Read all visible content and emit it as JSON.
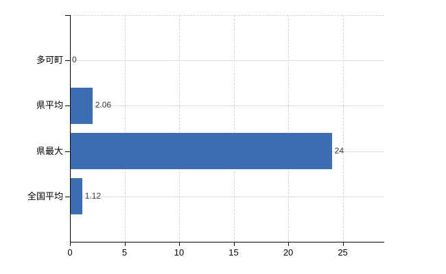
{
  "chart_data": {
    "type": "bar",
    "orientation": "horizontal",
    "title": "",
    "xlabel": "",
    "ylabel": "",
    "categories": [
      "多可町",
      "県平均",
      "県最大",
      "全国平均"
    ],
    "values": [
      0,
      2.06,
      24,
      1.12
    ],
    "value_labels": [
      "0",
      "2.06",
      "24",
      "1.12"
    ],
    "xticks": [
      0,
      5,
      10,
      15,
      20,
      25
    ],
    "xtick_labels": [
      "0",
      "5",
      "10",
      "15",
      "20",
      "25"
    ],
    "xlim": [
      0,
      28.8
    ],
    "grid": "on",
    "legend": "none",
    "colors": {
      "bar": "#3d6eb1",
      "h_gridline": "#d8ded8",
      "v_gridline": "#d9d3d9",
      "top_border": "#d3d3d3",
      "axis": "#000000",
      "category_label": "#000000",
      "tick_label": "#000000",
      "value_label": "#3a3a3a",
      "background": "#ffffff"
    }
  }
}
